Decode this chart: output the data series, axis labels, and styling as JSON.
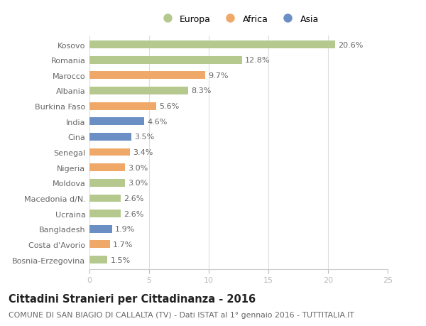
{
  "countries": [
    "Kosovo",
    "Romania",
    "Marocco",
    "Albania",
    "Burkina Faso",
    "India",
    "Cina",
    "Senegal",
    "Nigeria",
    "Moldova",
    "Macedonia d/N.",
    "Ucraina",
    "Bangladesh",
    "Costa d'Avorio",
    "Bosnia-Erzegovina"
  ],
  "values": [
    20.6,
    12.8,
    9.7,
    8.3,
    5.6,
    4.6,
    3.5,
    3.4,
    3.0,
    3.0,
    2.6,
    2.6,
    1.9,
    1.7,
    1.5
  ],
  "continents": [
    "Europa",
    "Europa",
    "Africa",
    "Europa",
    "Africa",
    "Asia",
    "Asia",
    "Africa",
    "Africa",
    "Europa",
    "Europa",
    "Europa",
    "Asia",
    "Africa",
    "Europa"
  ],
  "colors": {
    "Europa": "#b5c98e",
    "Africa": "#f0a868",
    "Asia": "#6b8fc4"
  },
  "xlim": [
    0,
    25
  ],
  "xticks": [
    0,
    5,
    10,
    15,
    20,
    25
  ],
  "title": "Cittadini Stranieri per Cittadinanza - 2016",
  "subtitle": "COMUNE DI SAN BIAGIO DI CALLALTA (TV) - Dati ISTAT al 1° gennaio 2016 - TUTTITALIA.IT",
  "background_color": "#ffffff",
  "bar_height": 0.5,
  "label_fontsize": 8.0,
  "value_fontsize": 8.0,
  "title_fontsize": 10.5,
  "subtitle_fontsize": 7.8,
  "legend_fontsize": 9.0
}
